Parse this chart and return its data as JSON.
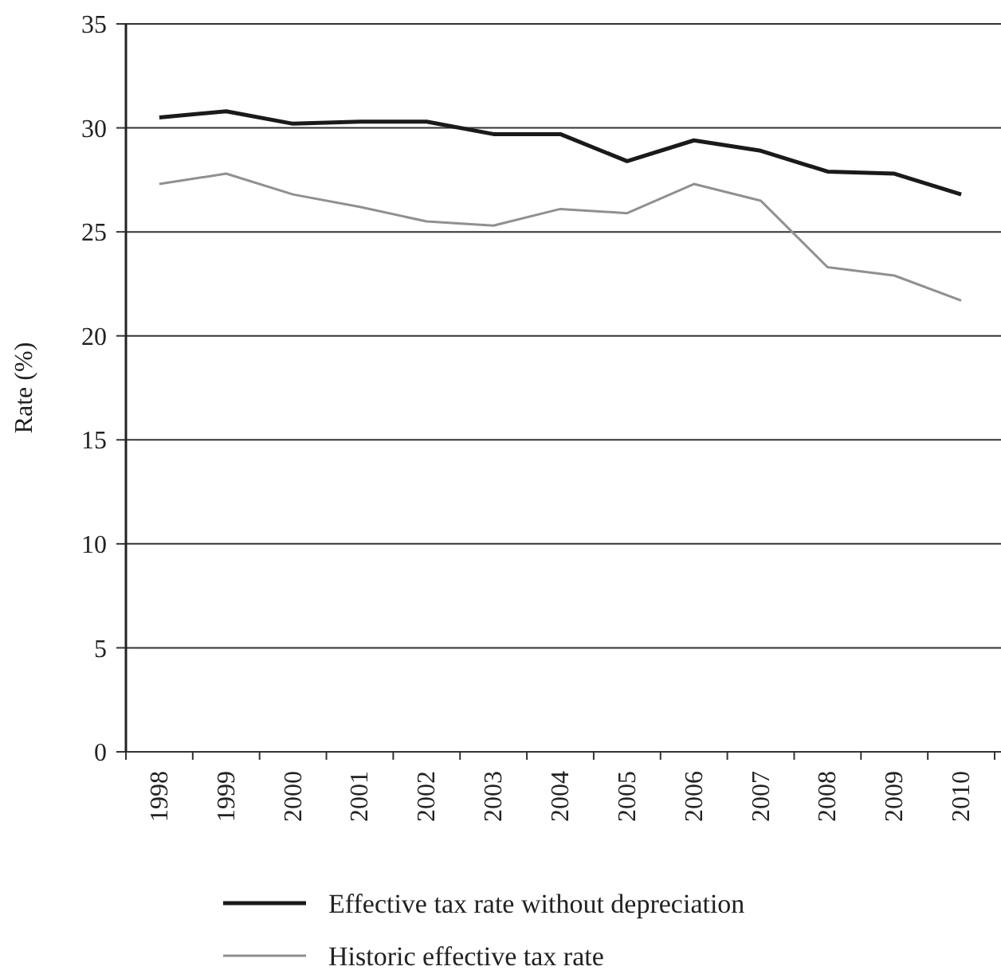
{
  "chart_data": {
    "type": "line",
    "ylabel": "Rate (%)",
    "categories": [
      "1998",
      "1999",
      "2000",
      "2001",
      "2002",
      "2003",
      "2004",
      "2005",
      "2006",
      "2007",
      "2008",
      "2009",
      "2010"
    ],
    "series": [
      {
        "name": "Effective tax rate without depreciation",
        "color": "#1a1a1a",
        "values": [
          30.5,
          30.8,
          30.2,
          30.3,
          30.3,
          29.7,
          29.7,
          28.4,
          29.4,
          28.9,
          27.9,
          27.8,
          26.8
        ]
      },
      {
        "name": "Historic effective tax rate",
        "color": "#909090",
        "values": [
          27.3,
          27.8,
          26.8,
          26.2,
          25.5,
          25.3,
          26.1,
          25.9,
          27.3,
          26.5,
          23.3,
          22.9,
          21.7
        ]
      }
    ],
    "ylim": [
      0,
      35
    ],
    "yticks": [
      0,
      5,
      10,
      15,
      20,
      25,
      30,
      35
    ],
    "grid": "y",
    "legend": "bottom",
    "marker": "none",
    "line_style": "solid"
  }
}
